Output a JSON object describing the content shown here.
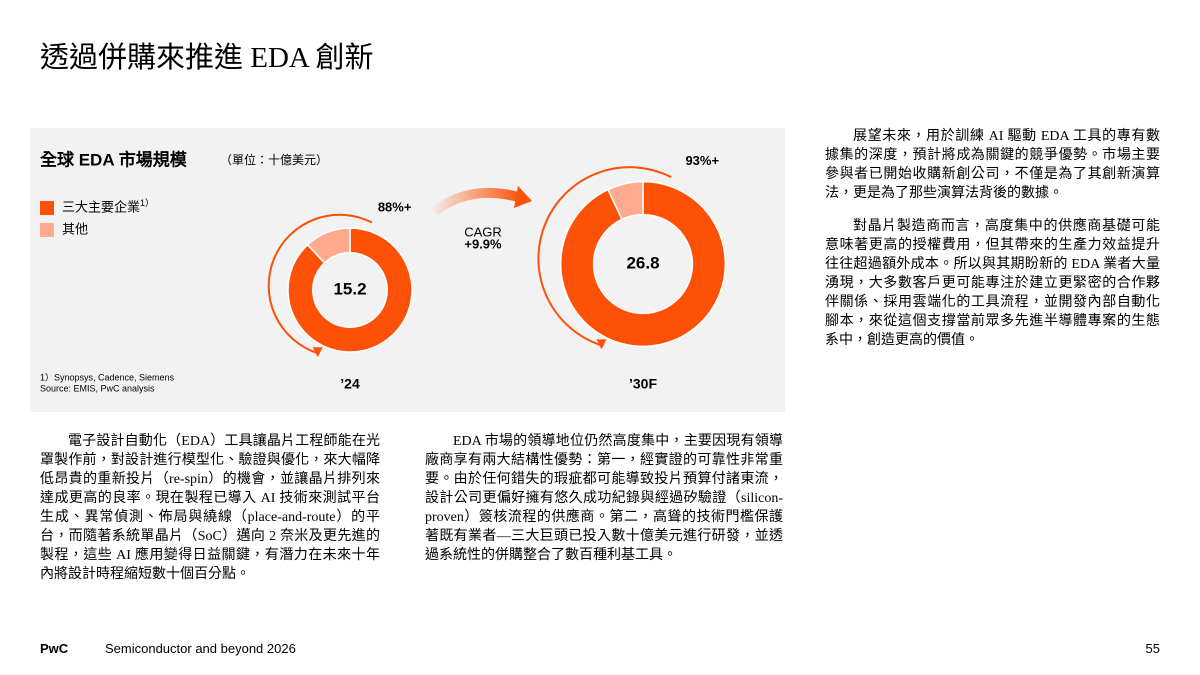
{
  "header": {
    "title": "透過併購來推進 EDA 創新"
  },
  "chart_data": {
    "type": "donut",
    "title": "全球 EDA 市場規模",
    "subtitle": "（單位：十億美元）",
    "categories": [
      "’24",
      "’30F"
    ],
    "totals": [
      15.2,
      26.8
    ],
    "series": [
      {
        "name": "三大主要企業",
        "name_note": "1）",
        "color": "#fd5108",
        "values": [
          88,
          93
        ],
        "value_labels": [
          "88%+",
          "93%+"
        ]
      },
      {
        "name": "其他",
        "color": "#ffaa8f",
        "values": [
          12,
          7
        ]
      }
    ],
    "annotation": {
      "label": "CAGR",
      "value": "+9.9%"
    },
    "footnotes": [
      "1）Synopsys, Cadence, Siemens",
      "Source: EMIS, PwC analysis"
    ]
  },
  "body": {
    "left": "電子設計自動化（EDA）工具讓晶片工程師能在光罩製作前，對設計進行模型化、驗證與優化，來大幅降低昂貴的重新投片（re-spin）的機會，並讓晶片排列來達成更高的良率。現在製程已導入 AI 技術來測試平台生成、異常偵測、佈局與繞線（place-and-route）的平台，而隨著系統單晶片（SoC）邁向 2 奈米及更先進的製程，這些 AI 應用變得日益關鍵，有潛力在未來十年內將設計時程縮短數十個百分點。",
    "middle": "EDA 市場的領導地位仍然高度集中，主要因現有領導廠商享有兩大結構性優勢：第一，經實證的可靠性非常重要。由於任何錯失的瑕疵都可能導致投片預算付諸東流，設計公司更偏好擁有悠久成功紀錄與經過矽驗證（silicon-proven）簽核流程的供應商。第二，高聳的技術門檻保護著既有業者—三大巨頭已投入數十億美元進行研發，並透過系統性的併購整合了數百種利基工具。",
    "right": [
      "展望未來，用於訓練 AI 驅動 EDA 工具的專有數據集的深度，預計將成為關鍵的競爭優勢。市場主要參與者已開始收購新創公司，不僅是為了其創新演算法，更是為了那些演算法背後的數據。",
      "對晶片製造商而言，高度集中的供應商基礎可能意味著更高的授權費用，但其帶來的生產力效益提升往往超過額外成本。所以與其期盼新的 EDA 業者大量湧現，大多數客戶更可能專注於建立更緊密的合作夥伴關係、採用雲端化的工具流程，並開發內部自動化腳本，來從這個支撐當前眾多先進半導體專案的生態系中，創造更高的價值。"
    ]
  },
  "footer": {
    "brand": "PwC",
    "text": "Semiconductor and beyond 2026",
    "page": "55"
  }
}
